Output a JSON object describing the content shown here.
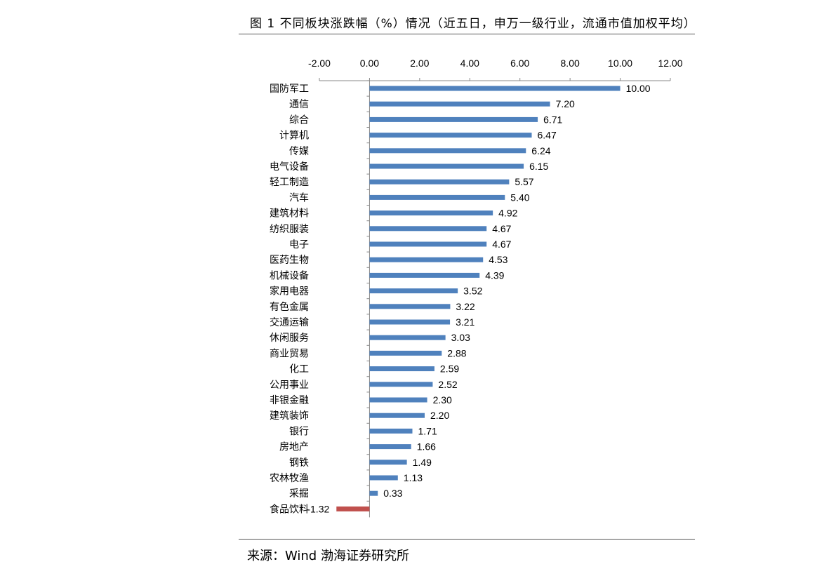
{
  "title": "图 1 不同板块涨跌幅（%）情况（近五日，申万一级行业，流通市值加权平均）",
  "source": "来源：Wind 渤海证券研究所",
  "colors": {
    "positive": "#4F81BD",
    "negative": "#C0504D",
    "axis": "#888888"
  },
  "chart_data": {
    "type": "bar",
    "orientation": "horizontal",
    "title": "图 1 不同板块涨跌幅（%）情况（近五日，申万一级行业，流通市值加权平均）",
    "xlabel": "",
    "ylabel": "",
    "xlim": [
      -2,
      12
    ],
    "x_ticks": [
      "-2.00",
      "0.00",
      "2.00",
      "4.00",
      "6.00",
      "8.00",
      "10.00",
      "12.00"
    ],
    "x_axis_position": "top",
    "grid": false,
    "categories": [
      "国防军工",
      "通信",
      "综合",
      "计算机",
      "传媒",
      "电气设备",
      "轻工制造",
      "汽车",
      "建筑材料",
      "纺织服装",
      "电子",
      "医药生物",
      "机械设备",
      "家用电器",
      "有色金属",
      "交通运输",
      "休闲服务",
      "商业贸易",
      "化工",
      "公用事业",
      "非银金融",
      "建筑装饰",
      "银行",
      "房地产",
      "钢铁",
      "农林牧渔",
      "采掘",
      "食品饮料"
    ],
    "values": [
      10.0,
      7.2,
      6.71,
      6.47,
      6.24,
      6.15,
      5.57,
      5.4,
      4.92,
      4.67,
      4.67,
      4.53,
      4.39,
      3.52,
      3.22,
      3.21,
      3.03,
      2.88,
      2.59,
      2.52,
      2.3,
      2.2,
      1.71,
      1.66,
      1.49,
      1.13,
      0.33,
      -1.32
    ],
    "value_labels": [
      "10.00",
      "7.20",
      "6.71",
      "6.47",
      "6.24",
      "6.15",
      "5.57",
      "5.40",
      "4.92",
      "4.67",
      "4.67",
      "4.53",
      "4.39",
      "3.52",
      "3.22",
      "3.21",
      "3.03",
      "2.88",
      "2.59",
      "2.52",
      "2.30",
      "2.20",
      "1.71",
      "1.66",
      "1.49",
      "1.13",
      "0.33",
      "-1.32"
    ]
  }
}
